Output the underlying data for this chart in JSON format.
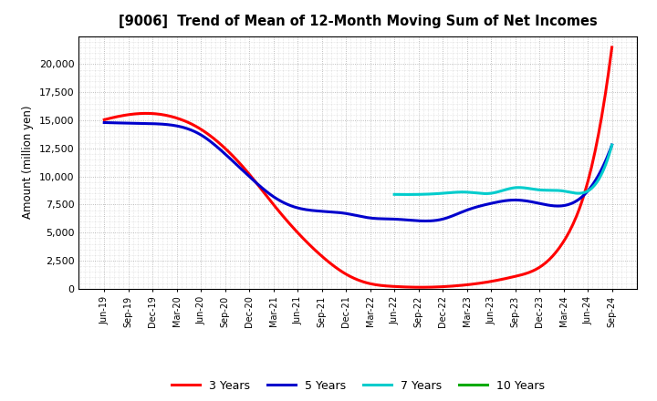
{
  "title": "[9006]  Trend of Mean of 12-Month Moving Sum of Net Incomes",
  "ylabel": "Amount (million yen)",
  "background_color": "#ffffff",
  "grid_color": "#999999",
  "series": {
    "3 Years": {
      "color": "#ff0000",
      "values": [
        15050,
        15500,
        15600,
        15200,
        14200,
        12500,
        10200,
        7500,
        5000,
        2900,
        1300,
        450,
        200,
        130,
        180,
        350,
        650,
        1100,
        1900,
        4200,
        9500,
        21500
      ]
    },
    "5 Years": {
      "color": "#0000cc",
      "values": [
        14800,
        14750,
        14700,
        14500,
        13700,
        12000,
        10000,
        8200,
        7200,
        6900,
        6700,
        6300,
        6200,
        6050,
        6200,
        7000,
        7600,
        7900,
        7600,
        7400,
        8700,
        12800
      ]
    },
    "7 Years": {
      "color": "#00cccc",
      "values": [
        null,
        null,
        null,
        null,
        null,
        null,
        null,
        null,
        null,
        null,
        null,
        null,
        8400,
        8400,
        8500,
        8600,
        8500,
        9000,
        8800,
        8700,
        8700,
        12800
      ]
    },
    "10 Years": {
      "color": "#00aa00",
      "values": [
        null,
        null,
        null,
        null,
        null,
        null,
        null,
        null,
        null,
        null,
        null,
        null,
        null,
        null,
        null,
        null,
        null,
        null,
        null,
        null,
        null,
        null
      ]
    }
  },
  "ylim": [
    0,
    22500
  ],
  "yticks": [
    0,
    2500,
    5000,
    7500,
    10000,
    12500,
    15000,
    17500,
    20000
  ],
  "xtick_labels": [
    "Jun-19",
    "Sep-19",
    "Dec-19",
    "Mar-20",
    "Jun-20",
    "Sep-20",
    "Dec-20",
    "Mar-21",
    "Jun-21",
    "Sep-21",
    "Dec-21",
    "Mar-22",
    "Jun-22",
    "Sep-22",
    "Dec-22",
    "Mar-23",
    "Jun-23",
    "Sep-23",
    "Dec-23",
    "Mar-24",
    "Jun-24",
    "Sep-24"
  ],
  "legend_entries": [
    "3 Years",
    "5 Years",
    "7 Years",
    "10 Years"
  ],
  "legend_colors": [
    "#ff0000",
    "#0000cc",
    "#00cccc",
    "#00aa00"
  ]
}
